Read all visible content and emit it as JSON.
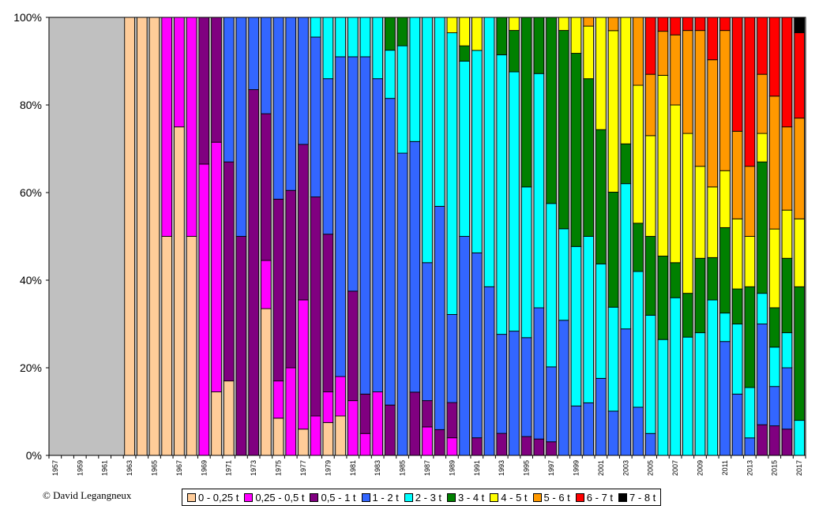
{
  "credit": "© David Legangneux",
  "chart_data": {
    "type": "bar",
    "stacked": "percent",
    "title": "",
    "xlabel": "",
    "ylabel": "",
    "ylim": [
      0,
      100
    ],
    "y_ticks": [
      "0%",
      "20%",
      "40%",
      "60%",
      "80%",
      "100%"
    ],
    "x_tick_labels": [
      "1957",
      "1959",
      "1961",
      "1963",
      "1965",
      "1967",
      "1969",
      "1971",
      "1973",
      "1975",
      "1977",
      "1979",
      "1981",
      "1983",
      "1985",
      "1987",
      "1989",
      "1991",
      "1993",
      "1995",
      "1997",
      "1999",
      "2001",
      "2003",
      "2005",
      "2007",
      "2009",
      "2011",
      "2013",
      "2015",
      "2017"
    ],
    "plot_background": "#c0c0c0",
    "legend_position": "bottom",
    "categories": [
      "1957",
      "1958",
      "1959",
      "1960",
      "1961",
      "1962",
      "1963",
      "1964",
      "1965",
      "1966",
      "1967",
      "1968",
      "1969",
      "1970",
      "1971",
      "1972",
      "1973",
      "1974",
      "1975",
      "1976",
      "1977",
      "1978",
      "1979",
      "1980",
      "1981",
      "1982",
      "1983",
      "1984",
      "1985",
      "1986",
      "1987",
      "1988",
      "1989",
      "1990",
      "1991",
      "1992",
      "1993",
      "1994",
      "1995",
      "1996",
      "1997",
      "1998",
      "1999",
      "2000",
      "2001",
      "2002",
      "2003",
      "2004",
      "2005",
      "2006",
      "2007",
      "2008",
      "2009",
      "2010",
      "2011",
      "2012",
      "2013",
      "2014",
      "2015",
      "2016",
      "2017"
    ],
    "series": [
      {
        "name": "0 - 0,25 t",
        "color": "#ffcc99",
        "values": [
          0,
          0,
          0,
          0,
          0,
          0,
          100,
          100,
          100,
          50,
          75,
          50,
          0,
          14.5,
          17,
          0,
          0,
          33.5,
          8.5,
          0,
          6,
          0,
          7.5,
          9,
          0,
          0,
          0,
          0,
          0,
          0,
          0,
          0,
          0,
          0,
          0,
          0,
          0,
          0,
          0,
          0,
          0,
          0,
          0,
          0,
          0,
          0,
          0,
          0,
          0,
          0,
          0,
          0,
          0,
          0,
          0,
          0,
          0,
          0,
          0,
          0,
          0
        ]
      },
      {
        "name": "0,25 - 0,5 t",
        "color": "#ff00ff",
        "values": [
          0,
          0,
          0,
          0,
          0,
          0,
          0,
          0,
          0,
          50,
          25,
          50,
          66.5,
          57,
          0,
          0,
          0,
          11,
          8.5,
          20,
          29.5,
          9,
          7,
          9,
          12.5,
          5,
          14.5,
          0,
          0,
          0,
          6.5,
          0,
          4,
          0,
          0,
          0,
          0,
          0,
          0,
          0,
          0,
          0,
          0,
          0,
          0,
          0,
          0,
          0,
          0,
          0,
          0,
          0,
          0,
          0,
          0,
          0,
          0,
          0,
          0,
          0,
          0
        ]
      },
      {
        "name": "0,5 - 1 t",
        "color": "#800080",
        "values": [
          0,
          0,
          0,
          0,
          0,
          0,
          0,
          0,
          0,
          0,
          0,
          0,
          33.5,
          28.5,
          50,
          50,
          83.5,
          33.5,
          41.5,
          40.5,
          35.5,
          50,
          36,
          0,
          25,
          9,
          0,
          11.5,
          0,
          13.5,
          6,
          4.5,
          8,
          0,
          4,
          0,
          5,
          0,
          4,
          3.5,
          3,
          0,
          0,
          0,
          0,
          0,
          0,
          0,
          0,
          0,
          0,
          0,
          0,
          0,
          0,
          0,
          0,
          7,
          6,
          6,
          0
        ]
      },
      {
        "name": "1 - 2 t",
        "color": "#3366ff",
        "values": [
          0,
          0,
          0,
          0,
          0,
          0,
          0,
          0,
          0,
          0,
          0,
          0,
          0,
          0,
          33,
          50,
          16.5,
          22,
          41.5,
          39.5,
          29,
          36.5,
          35.5,
          73,
          53.5,
          77,
          71.5,
          70,
          69,
          53.5,
          31.5,
          39,
          20,
          50,
          42,
          38.5,
          22.5,
          28.5,
          21,
          28,
          16.5,
          31,
          11,
          12,
          17.5,
          10,
          27,
          11,
          5,
          0,
          0,
          0,
          0,
          0,
          26,
          14,
          4,
          23,
          8,
          14,
          0
        ]
      },
      {
        "name": "2 - 3 t",
        "color": "#00ffff",
        "values": [
          0,
          0,
          0,
          0,
          0,
          0,
          0,
          0,
          0,
          0,
          0,
          0,
          0,
          0,
          0,
          0,
          0,
          0,
          0,
          0,
          0,
          4.5,
          14,
          9,
          9,
          9,
          14,
          11,
          24.5,
          26.5,
          56,
          33,
          64,
          40,
          46,
          61.5,
          63.5,
          59.5,
          32,
          50,
          36,
          21,
          35.5,
          38,
          26,
          23.5,
          31,
          31,
          27,
          25,
          36,
          27,
          28,
          33,
          6.5,
          16,
          11.5,
          7,
          8,
          8,
          8
        ]
      },
      {
        "name": "3 - 4 t",
        "color": "#008000",
        "values": [
          0,
          0,
          0,
          0,
          0,
          0,
          0,
          0,
          0,
          0,
          0,
          0,
          0,
          0,
          0,
          0,
          0,
          0,
          0,
          0,
          0,
          0,
          0,
          0,
          0,
          0,
          0,
          7.5,
          6.5,
          0,
          0,
          0,
          0,
          3.5,
          0,
          0,
          8.5,
          9.5,
          36,
          12,
          41,
          45.5,
          43,
          36,
          30.5,
          26,
          8.5,
          11,
          18,
          18,
          8,
          10,
          17,
          9,
          19.5,
          8,
          23,
          30,
          8,
          17,
          30.5
        ]
      },
      {
        "name": "4 - 5 t",
        "color": "#ffff00",
        "values": [
          0,
          0,
          0,
          0,
          0,
          0,
          0,
          0,
          0,
          0,
          0,
          0,
          0,
          0,
          0,
          0,
          0,
          0,
          0,
          0,
          0,
          0,
          0,
          0,
          0,
          0,
          0,
          0,
          0,
          0,
          0,
          0,
          3.5,
          6.5,
          7.5,
          0,
          0,
          3,
          0,
          0,
          0,
          3,
          8,
          12,
          25.5,
          36.5,
          27,
          31.5,
          23,
          39,
          36,
          36.5,
          21,
          15,
          13,
          16,
          11.5,
          6.5,
          16,
          11,
          15.5
        ]
      },
      {
        "name": "5 - 6 t",
        "color": "#ff9900",
        "values": [
          0,
          0,
          0,
          0,
          0,
          0,
          0,
          0,
          0,
          0,
          0,
          0,
          0,
          0,
          0,
          0,
          0,
          0,
          0,
          0,
          0,
          0,
          0,
          0,
          0,
          0,
          0,
          0,
          0,
          0,
          0,
          0,
          0,
          0,
          0,
          0,
          0,
          0,
          0,
          0,
          0,
          0,
          0,
          2,
          0,
          3,
          0,
          15.5,
          14,
          9.5,
          16,
          23.5,
          31,
          27,
          32,
          20,
          16,
          13.5,
          27,
          19,
          23
        ]
      },
      {
        "name": "6 - 7 t",
        "color": "#ff0000",
        "values": [
          0,
          0,
          0,
          0,
          0,
          0,
          0,
          0,
          0,
          0,
          0,
          0,
          0,
          0,
          0,
          0,
          0,
          0,
          0,
          0,
          0,
          0,
          0,
          0,
          0,
          0,
          0,
          0,
          0,
          0,
          0,
          0,
          0,
          0,
          0,
          0,
          0,
          0,
          0,
          0,
          0,
          0,
          0,
          0,
          0,
          0,
          0,
          0,
          13,
          3,
          4,
          3,
          3,
          9,
          3,
          26,
          34,
          13,
          16,
          25,
          19.5
        ]
      },
      {
        "name": "7 - 8 t",
        "color": "#000000",
        "values": [
          0,
          0,
          0,
          0,
          0,
          0,
          0,
          0,
          0,
          0,
          0,
          0,
          0,
          0,
          0,
          0,
          0,
          0,
          0,
          0,
          0,
          0,
          0,
          0,
          0,
          0,
          0,
          0,
          0,
          0,
          0,
          0,
          0,
          0,
          0,
          0,
          0,
          0,
          0,
          0,
          0,
          0,
          0,
          0,
          0,
          0,
          0,
          0,
          0,
          0,
          0,
          0,
          0,
          0,
          0,
          0,
          0,
          0,
          0,
          0,
          3.5
        ]
      }
    ]
  }
}
